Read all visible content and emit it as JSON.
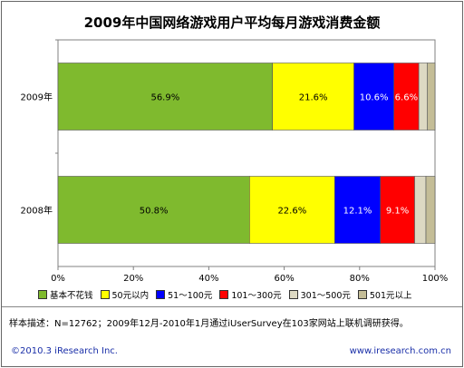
{
  "chart_data": {
    "type": "bar",
    "orientation": "horizontal",
    "stacked": true,
    "title": "2009年中国网络游戏用户平均每月游戏消费金额",
    "categories": [
      "2009年",
      "2008年"
    ],
    "series": [
      {
        "name": "基本不花钱",
        "values": [
          56.9,
          50.8
        ],
        "color": "#7fba2e",
        "labels": [
          "56.9%",
          "50.8%"
        ]
      },
      {
        "name": "50元以内",
        "values": [
          21.6,
          22.6
        ],
        "color": "#ffff00",
        "labels": [
          "21.6%",
          "22.6%"
        ]
      },
      {
        "name": "51～100元",
        "values": [
          10.6,
          12.1
        ],
        "color": "#0000ff",
        "labels": [
          "10.6%",
          "12.1%"
        ]
      },
      {
        "name": "101～300元",
        "values": [
          6.6,
          9.1
        ],
        "color": "#ff0000",
        "labels": [
          "6.6%",
          "9.1%"
        ]
      },
      {
        "name": "301～500元",
        "values": [
          2.3,
          3.0
        ],
        "color": "#ddd9c3",
        "labels": [
          "",
          ""
        ]
      },
      {
        "name": "501元以上",
        "values": [
          2.0,
          2.4
        ],
        "color": "#c4bd97",
        "labels": [
          "",
          ""
        ]
      }
    ],
    "xlim": [
      0,
      100
    ],
    "xticks": [
      "0%",
      "20%",
      "40%",
      "60%",
      "80%",
      "100%"
    ],
    "legend_position": "bottom",
    "grid": false
  },
  "note": "样本描述：N=12762；2009年12月-2010年1月通过iUserSurvey在103家网站上联机调研获得。",
  "footer_left": "©2010.3 iResearch Inc.",
  "footer_right": "www.iresearch.com.cn"
}
